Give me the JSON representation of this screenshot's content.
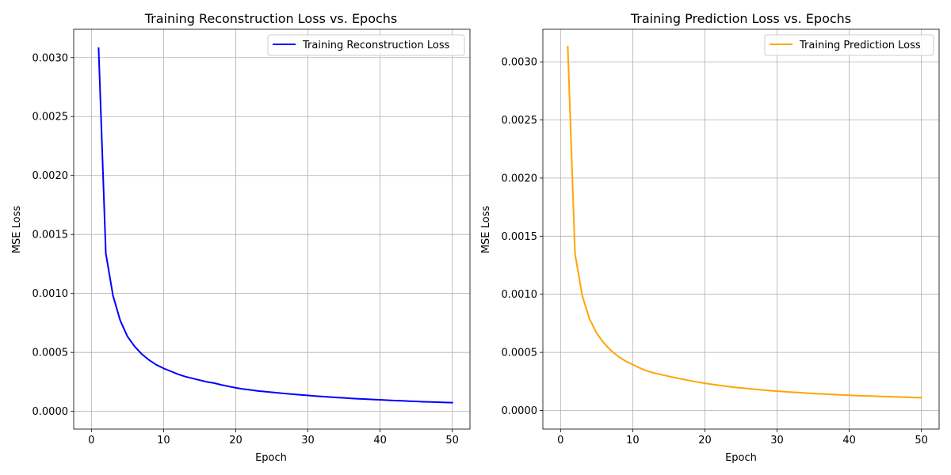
{
  "chart_data": [
    {
      "type": "line",
      "title": "Training Reconstruction Loss vs. Epochs",
      "xlabel": "Epoch",
      "ylabel": "MSE Loss",
      "xlim": [
        -2.45,
        52.45
      ],
      "ylim": [
        -0.00015,
        0.00324
      ],
      "xticks": [
        0,
        10,
        20,
        30,
        40,
        50
      ],
      "xtick_labels": [
        "0",
        "10",
        "20",
        "30",
        "40",
        "50"
      ],
      "yticks": [
        0.0,
        0.0005,
        0.001,
        0.0015,
        0.002,
        0.0025,
        0.003
      ],
      "ytick_labels": [
        "0.0000",
        "0.0005",
        "0.0010",
        "0.0015",
        "0.0020",
        "0.0025",
        "0.0030"
      ],
      "grid": true,
      "legend_position": "top-right",
      "series": [
        {
          "name": "Training Reconstruction Loss",
          "color": "#0000ff",
          "x": [
            1,
            2,
            3,
            4,
            5,
            6,
            7,
            8,
            9,
            10,
            11,
            12,
            13,
            14,
            15,
            16,
            17,
            18,
            19,
            20,
            21,
            22,
            23,
            24,
            25,
            26,
            27,
            28,
            29,
            30,
            31,
            32,
            33,
            34,
            35,
            36,
            37,
            38,
            39,
            40,
            41,
            42,
            43,
            44,
            45,
            46,
            47,
            48,
            49,
            50
          ],
          "values": [
            0.00308,
            0.00134,
            0.00098,
            0.00077,
            0.000635,
            0.00055,
            0.000485,
            0.000435,
            0.000395,
            0.000365,
            0.00034,
            0.000315,
            0.000295,
            0.00028,
            0.000265,
            0.00025,
            0.00024,
            0.000225,
            0.000212,
            0.0002,
            0.00019,
            0.000182,
            0.000174,
            0.000168,
            0.000162,
            0.000156,
            0.00015,
            0.000145,
            0.00014,
            0.000135,
            0.00013,
            0.000126,
            0.000122,
            0.000118,
            0.000114,
            0.00011,
            0.000107,
            0.000104,
            0.000101,
            9.8e-05,
            9.5e-05,
            9.2e-05,
            9e-05,
            8.7e-05,
            8.5e-05,
            8.2e-05,
            8e-05,
            7.8e-05,
            7.6e-05,
            7.4e-05
          ]
        }
      ]
    },
    {
      "type": "line",
      "title": "Training Prediction Loss vs. Epochs",
      "xlabel": "Epoch",
      "ylabel": "MSE Loss",
      "xlim": [
        -2.45,
        52.45
      ],
      "ylim": [
        -0.00016,
        0.00328
      ],
      "xticks": [
        0,
        10,
        20,
        30,
        40,
        50
      ],
      "xtick_labels": [
        "0",
        "10",
        "20",
        "30",
        "40",
        "50"
      ],
      "yticks": [
        0.0,
        0.0005,
        0.001,
        0.0015,
        0.002,
        0.0025,
        0.003
      ],
      "ytick_labels": [
        "0.0000",
        "0.0005",
        "0.0010",
        "0.0015",
        "0.0020",
        "0.0025",
        "0.0030"
      ],
      "grid": true,
      "legend_position": "top-right",
      "series": [
        {
          "name": "Training Prediction Loss",
          "color": "#ffa500",
          "x": [
            1,
            2,
            3,
            4,
            5,
            6,
            7,
            8,
            9,
            10,
            11,
            12,
            13,
            14,
            15,
            16,
            17,
            18,
            19,
            20,
            21,
            22,
            23,
            24,
            25,
            26,
            27,
            28,
            29,
            30,
            31,
            32,
            33,
            34,
            35,
            36,
            37,
            38,
            39,
            40,
            41,
            42,
            43,
            44,
            45,
            46,
            47,
            48,
            49,
            50
          ],
          "values": [
            0.00313,
            0.00135,
            0.00099,
            0.00079,
            0.000665,
            0.00058,
            0.000515,
            0.000465,
            0.000425,
            0.000395,
            0.000365,
            0.00034,
            0.000322,
            0.000308,
            0.000294,
            0.00028,
            0.000268,
            0.000256,
            0.000244,
            0.000234,
            0.000225,
            0.000216,
            0.000208,
            0.0002,
            0.000194,
            0.000188,
            0.000182,
            0.000176,
            0.000171,
            0.000166,
            0.000162,
            0.000158,
            0.000154,
            0.00015,
            0.000146,
            0.000143,
            0.00014,
            0.000137,
            0.000134,
            0.000131,
            0.000128,
            0.000126,
            0.000124,
            0.000122,
            0.00012,
            0.000118,
            0.000116,
            0.000114,
            0.000112,
            0.00011
          ]
        }
      ]
    }
  ]
}
